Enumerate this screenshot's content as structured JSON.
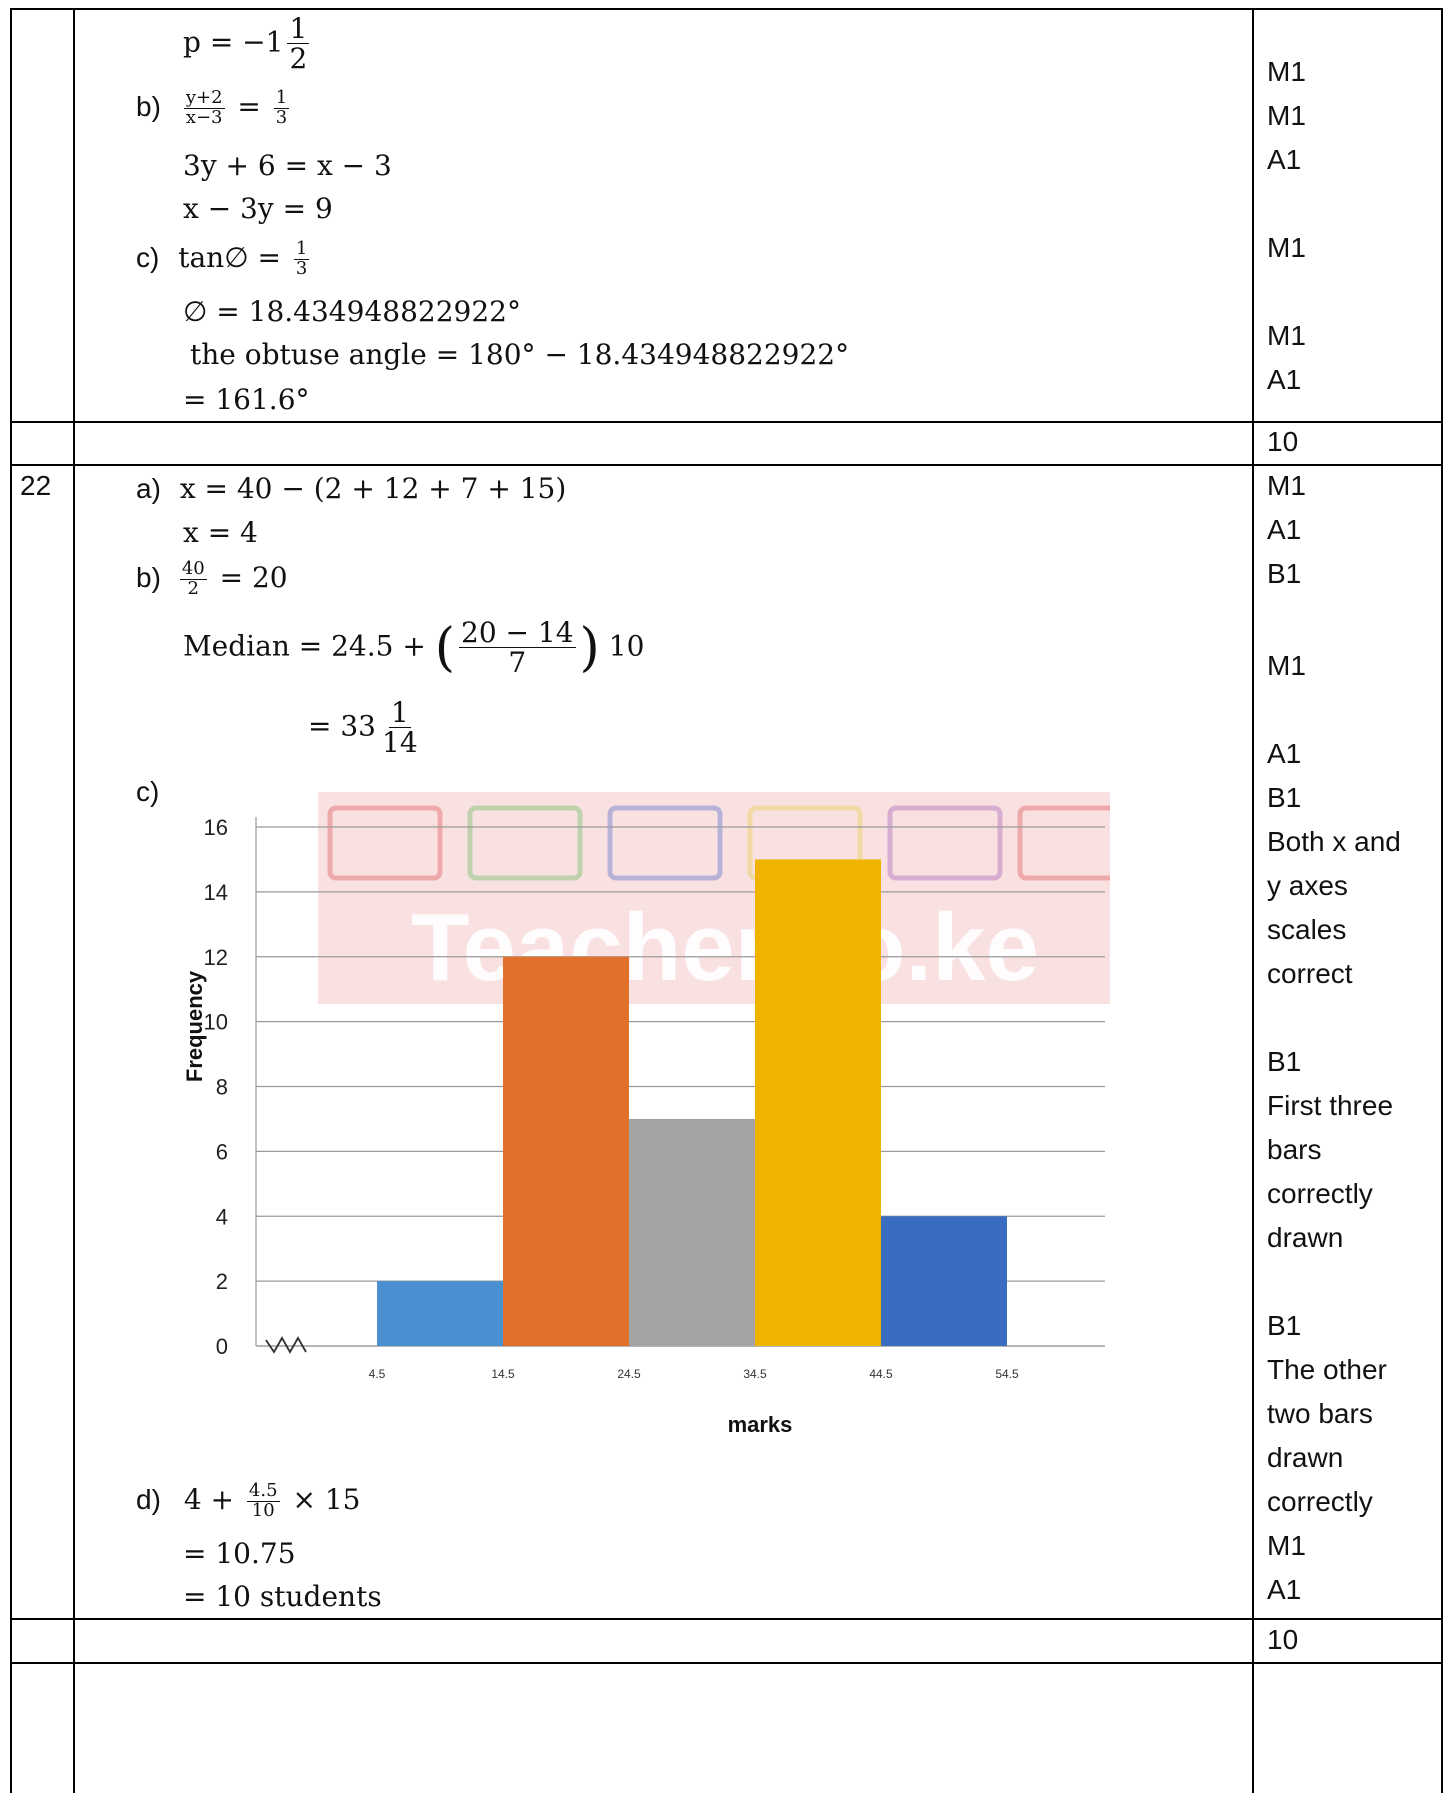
{
  "q21": {
    "p_line": {
      "lhs": "p = −1",
      "frac_num": "1",
      "frac_den": "2"
    },
    "b_label": "b)",
    "b_frac_left_num": "y+2",
    "b_frac_left_den": "x−3",
    "b_eq": "=",
    "b_frac_right_num": "1",
    "b_frac_right_den": "3",
    "b_line2": "3y + 6 = x − 3",
    "b_line3": "x − 3y = 9",
    "c_label": "c)",
    "c_line1_lhs": "tan∅ =",
    "c_frac_num": "1",
    "c_frac_den": "3",
    "c_line2": "∅ = 18.434948822922°",
    "c_line3": "the obtuse angle = 180° − 18.434948822922°",
    "c_line4": "= 161.6°",
    "marks": [
      "M1",
      "M1",
      "A1",
      "M1",
      "M1",
      "A1"
    ],
    "total": "10"
  },
  "q22": {
    "number": "22",
    "a_label": "a)",
    "a_line1": "x = 40 − (2 + 12 + 7 + 15)",
    "a_line2": "x = 4",
    "b_label": "b)",
    "b_frac_num": "40",
    "b_frac_den": "2",
    "b_eq": "= 20",
    "median_lhs": "Median = 24.5 +",
    "median_frac_num": "20 − 14",
    "median_frac_den": "7",
    "median_mult": "10",
    "median_result_lhs": "= 33",
    "median_result_num": "1",
    "median_result_den": "14",
    "c_label": "c)",
    "d_label": "d)",
    "d_lhs": "4 +",
    "d_frac_num": "4.5",
    "d_frac_den": "10",
    "d_rhs": "× 15",
    "d_line2": "= 10.75",
    "d_line3": "= 10 students",
    "marks": {
      "m1": "M1",
      "m2": "A1",
      "m3": "B1",
      "m4": "M1",
      "m5": "A1",
      "m6": "B1",
      "m7a": "Both x and",
      "m7b": "y axes",
      "m7c": "scales",
      "m7d": "correct",
      "m8": "B1",
      "m9a": "First three",
      "m9b": "bars",
      "m9c": "correctly",
      "m9d": "drawn",
      "m10": "B1",
      "m11a": "The other",
      "m11b": "two bars",
      "m11c": "drawn",
      "m11d": "correctly",
      "m12": "M1",
      "m13": "A1"
    },
    "total": "10"
  },
  "watermark": "Teacher.co.ke",
  "chart_data": {
    "type": "bar",
    "categories": [
      "4.5–14.5",
      "14.5–24.5",
      "24.5–34.5",
      "34.5–44.5",
      "44.5–54.5"
    ],
    "x_ticks": [
      "4.5",
      "14.5",
      "24.5",
      "34.5",
      "44.5",
      "54.5"
    ],
    "values": [
      2,
      12,
      7,
      15,
      4
    ],
    "colors": [
      "#4a8fd0",
      "#e0702a",
      "#a3a3a3",
      "#f0b400",
      "#3a6cc0"
    ],
    "xlabel": "marks",
    "ylabel": "Frequency",
    "ylim": [
      0,
      16
    ],
    "y_ticks": [
      "0",
      "2",
      "4",
      "6",
      "8",
      "10",
      "12",
      "14",
      "16"
    ],
    "grid": true
  }
}
